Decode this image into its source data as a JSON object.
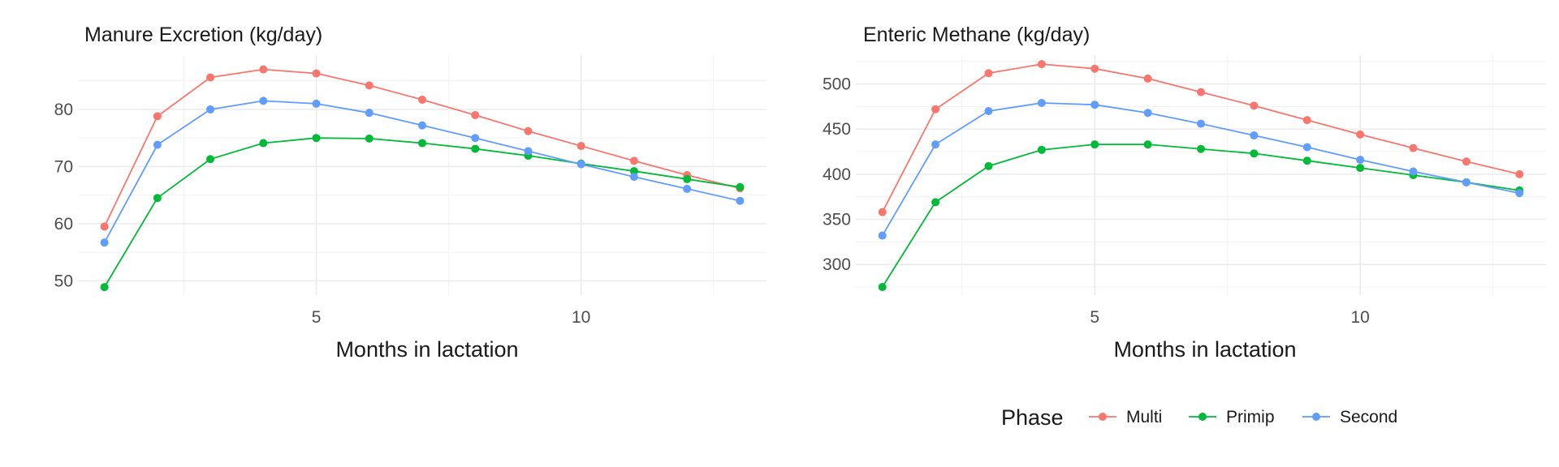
{
  "chart_data": [
    {
      "type": "line",
      "title": "Manure Excretion (kg/day)",
      "xlabel": "Months in lactation",
      "ylabel": "",
      "xlim": [
        0.5,
        13.5
      ],
      "ylim": [
        47.5,
        89.5
      ],
      "xticks": [
        5,
        10
      ],
      "xtick_labels": [
        "5",
        "10"
      ],
      "yticks": [
        50,
        60,
        70,
        80
      ],
      "ytick_labels": [
        "50",
        "60",
        "70",
        "80"
      ],
      "grid": true,
      "x": [
        1,
        2,
        3,
        4,
        5,
        6,
        7,
        8,
        9,
        10,
        11,
        12,
        13
      ],
      "series": [
        {
          "name": "Multi",
          "color": "#F8766D",
          "values": [
            59.5,
            78.8,
            85.6,
            87.0,
            86.3,
            84.2,
            81.7,
            79.0,
            76.2,
            73.6,
            71.0,
            68.5,
            66.2
          ]
        },
        {
          "name": "Primip",
          "color": "#00BA38",
          "values": [
            48.9,
            64.5,
            71.3,
            74.1,
            75.0,
            74.9,
            74.1,
            73.1,
            71.9,
            70.5,
            69.2,
            67.8,
            66.4
          ]
        },
        {
          "name": "Second",
          "color": "#619CFF",
          "values": [
            56.7,
            73.8,
            80.0,
            81.5,
            81.0,
            79.4,
            77.2,
            75.0,
            72.7,
            70.4,
            68.2,
            66.1,
            64.0
          ]
        }
      ]
    },
    {
      "type": "line",
      "title": "Enteric Methane (kg/day)",
      "xlabel": "Months in lactation",
      "ylabel": "",
      "xlim": [
        0.5,
        13.5
      ],
      "ylim": [
        266,
        532
      ],
      "xticks": [
        5,
        10
      ],
      "xtick_labels": [
        "5",
        "10"
      ],
      "yticks": [
        300,
        350,
        400,
        450,
        500
      ],
      "ytick_labels": [
        "300",
        "350",
        "400",
        "450",
        "500"
      ],
      "grid": true,
      "x": [
        1,
        2,
        3,
        4,
        5,
        6,
        7,
        8,
        9,
        10,
        11,
        12,
        13
      ],
      "series": [
        {
          "name": "Multi",
          "color": "#F8766D",
          "values": [
            358,
            472,
            512,
            522,
            517,
            506,
            491,
            476,
            460,
            444,
            429,
            414,
            400
          ]
        },
        {
          "name": "Primip",
          "color": "#00BA38",
          "values": [
            275,
            369,
            409,
            427,
            433,
            433,
            428,
            423,
            415,
            407,
            399,
            391,
            382
          ]
        },
        {
          "name": "Second",
          "color": "#619CFF",
          "values": [
            332,
            433,
            470,
            479,
            477,
            468,
            456,
            443,
            430,
            416,
            403,
            391,
            379
          ]
        }
      ]
    }
  ],
  "legend": {
    "title": "Phase",
    "position": "bottom",
    "items": [
      {
        "label": "Multi",
        "color": "#F8766D"
      },
      {
        "label": "Primip",
        "color": "#00BA38"
      },
      {
        "label": "Second",
        "color": "#619CFF"
      }
    ]
  }
}
